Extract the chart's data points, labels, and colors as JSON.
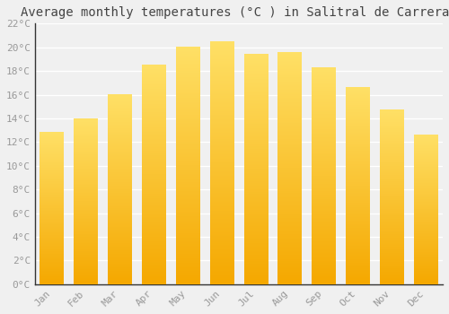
{
  "title": "Average monthly temperatures (°C ) in Salitral de Carreras",
  "months": [
    "Jan",
    "Feb",
    "Mar",
    "Apr",
    "May",
    "Jun",
    "Jul",
    "Aug",
    "Sep",
    "Oct",
    "Nov",
    "Dec"
  ],
  "temperatures": [
    12.8,
    14.0,
    16.0,
    18.5,
    20.0,
    20.5,
    19.4,
    19.6,
    18.3,
    16.6,
    14.7,
    12.6
  ],
  "bar_color_bottom": "#F5A800",
  "bar_color_top": "#FFE066",
  "ylim": [
    0,
    22
  ],
  "yticks": [
    0,
    2,
    4,
    6,
    8,
    10,
    12,
    14,
    16,
    18,
    20,
    22
  ],
  "ytick_labels": [
    "0°C",
    "2°C",
    "4°C",
    "6°C",
    "8°C",
    "10°C",
    "12°C",
    "14°C",
    "16°C",
    "18°C",
    "20°C",
    "22°C"
  ],
  "background_color": "#F0F0F0",
  "grid_color": "#FFFFFF",
  "title_fontsize": 10,
  "tick_fontsize": 8,
  "tick_color": "#999999",
  "font_family": "monospace",
  "spine_color": "#333333"
}
